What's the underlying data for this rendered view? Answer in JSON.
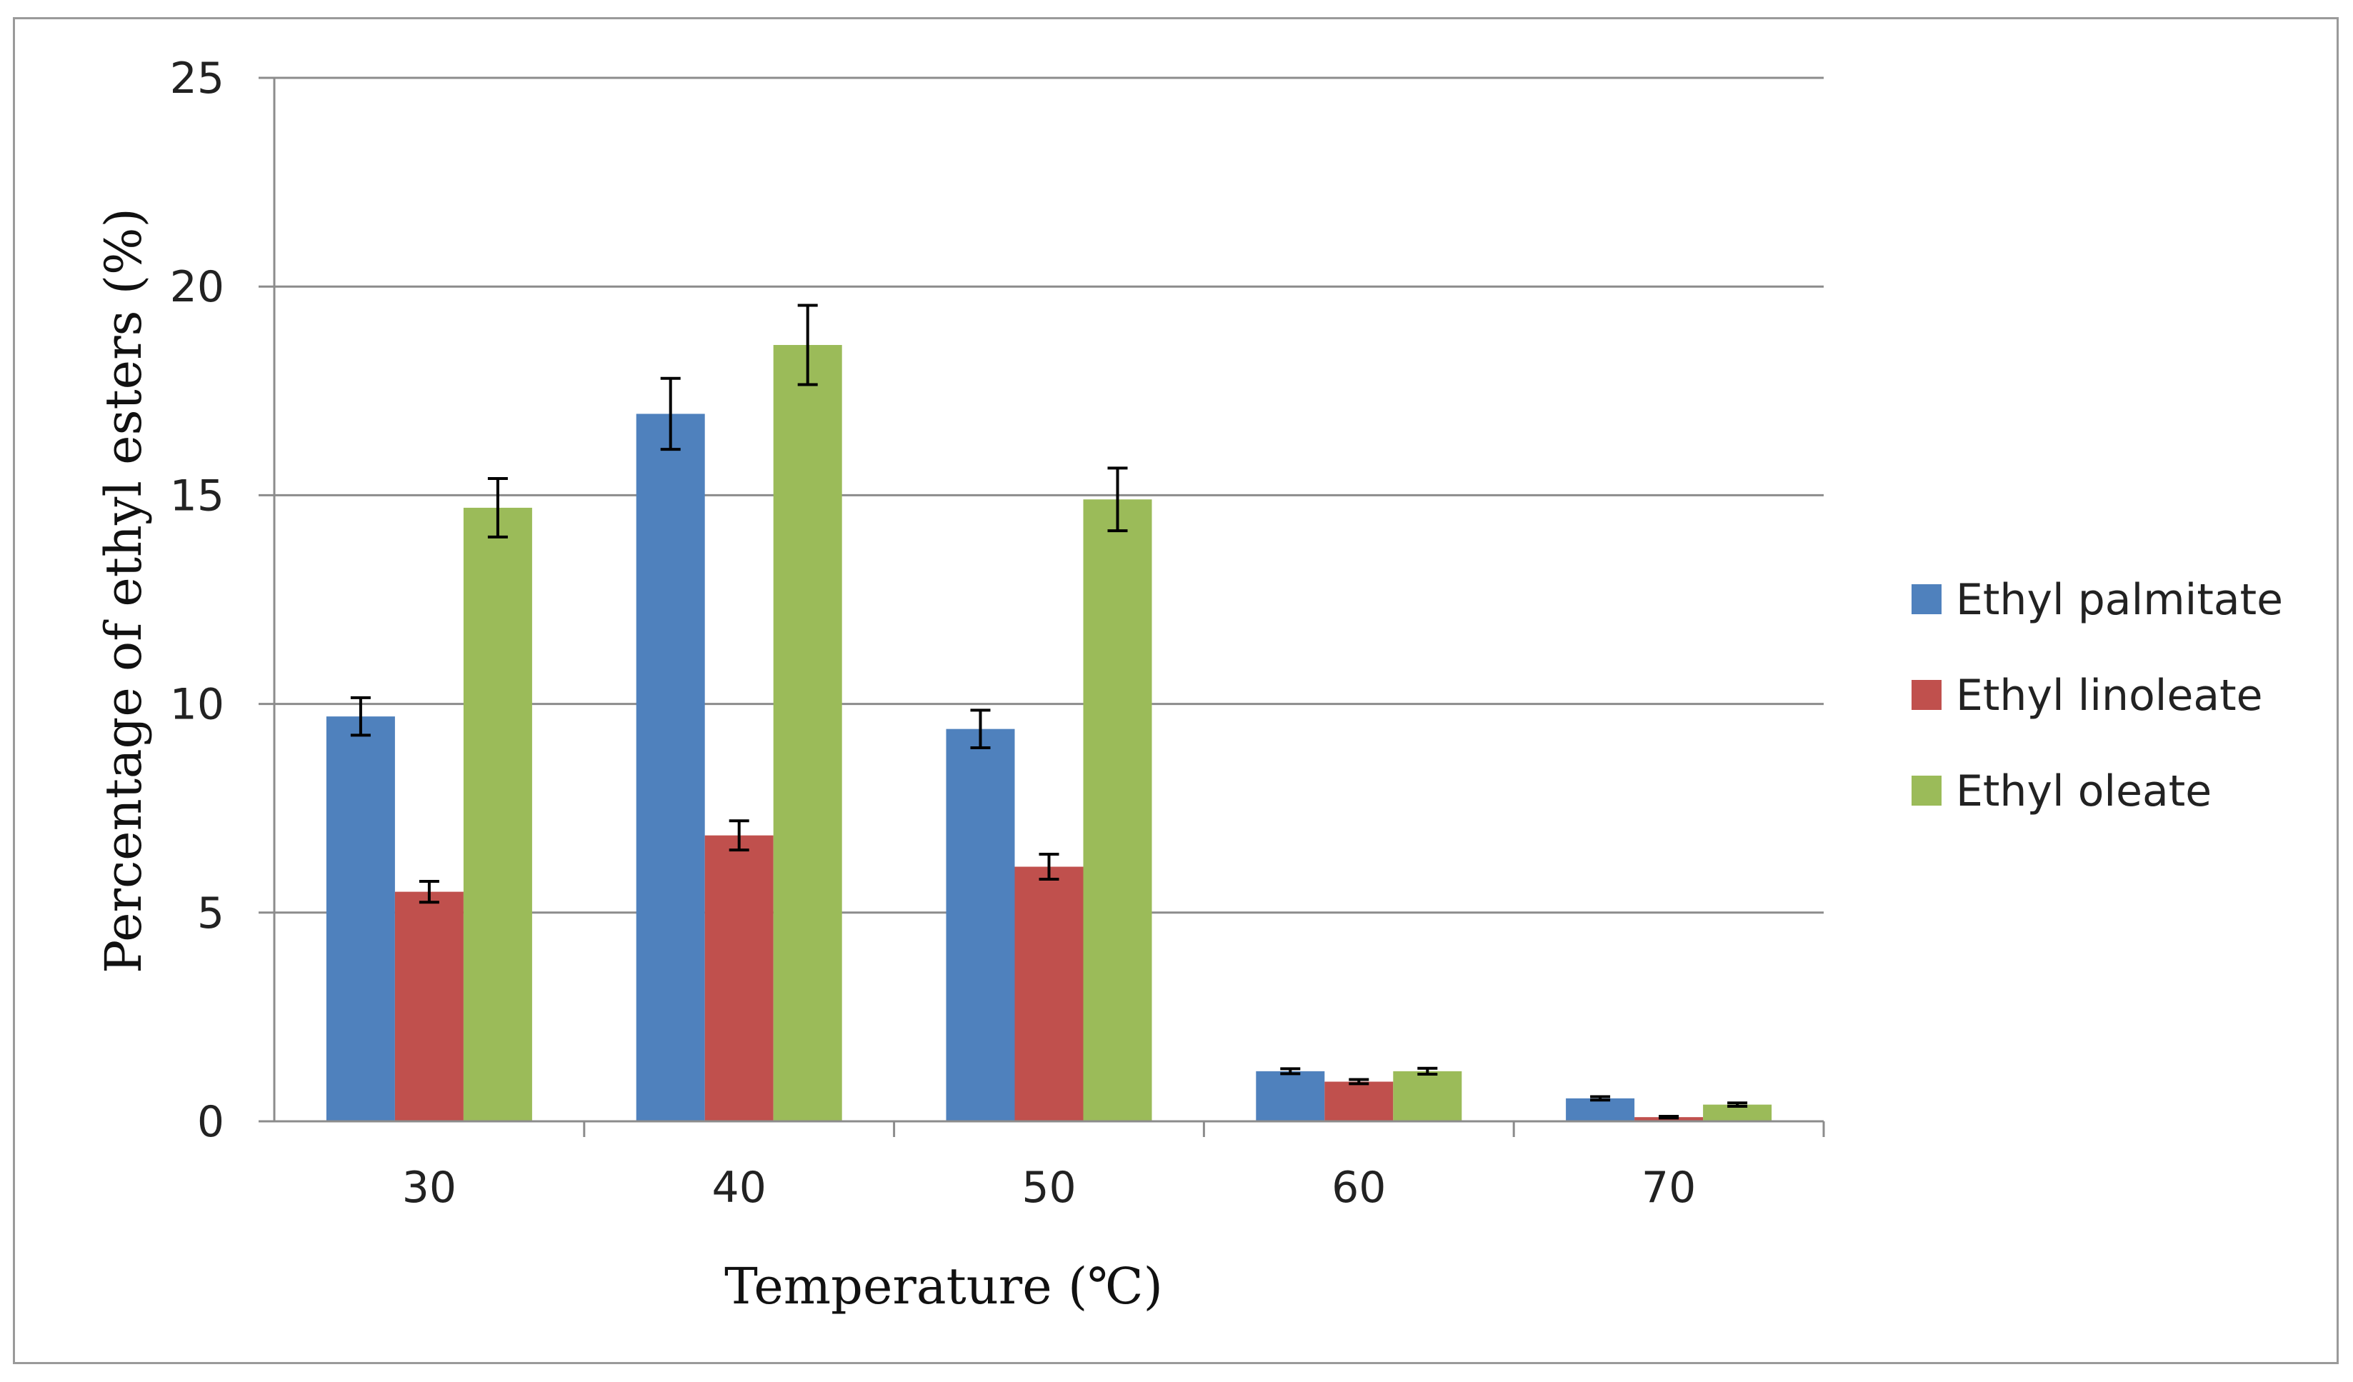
{
  "chart_data": {
    "type": "bar",
    "title": "",
    "xlabel": "Temperature (℃)",
    "ylabel": "Percentage of ethyl esters (%)",
    "ylim": [
      0,
      25
    ],
    "yticks": [
      0,
      5,
      10,
      15,
      20,
      25
    ],
    "grid": true,
    "legend_position": "right",
    "error_bars": true,
    "categories": [
      "30",
      "40",
      "50",
      "60",
      "70"
    ],
    "series": [
      {
        "name": "Ethyl palmitate",
        "color": "#4F81BD",
        "values": [
          9.7,
          16.95,
          9.4,
          1.2,
          0.55
        ],
        "errors": [
          0.45,
          0.85,
          0.45,
          0.06,
          0.04
        ]
      },
      {
        "name": "Ethyl linoleate",
        "color": "#C0504D",
        "values": [
          5.5,
          6.85,
          6.1,
          0.95,
          0.1
        ],
        "errors": [
          0.25,
          0.35,
          0.3,
          0.05,
          0.02
        ]
      },
      {
        "name": "Ethyl oleate",
        "color": "#9BBB59",
        "values": [
          14.7,
          18.6,
          14.9,
          1.2,
          0.4
        ],
        "errors": [
          0.7,
          0.95,
          0.75,
          0.07,
          0.04
        ]
      }
    ]
  }
}
